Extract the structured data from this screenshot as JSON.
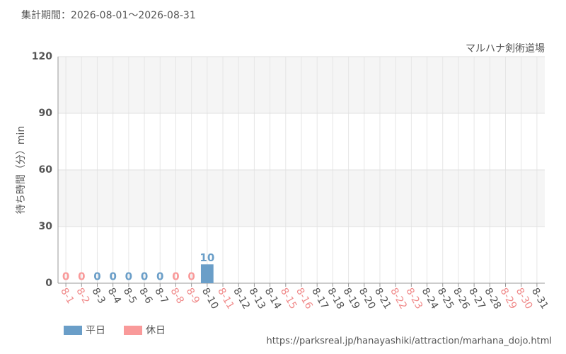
{
  "chart_data": {
    "type": "bar",
    "subtitle": "集計期間：2026-08-01～2026-08-31",
    "title": "マルハナ剣術道場",
    "y_label": "待ち時間（分）min",
    "source": "https://parksreal.jp/hanayashiki/attraction/marhana_dojo.html",
    "categories": [
      "8-1",
      "8-2",
      "8-3",
      "8-4",
      "8-5",
      "8-6",
      "8-7",
      "8-8",
      "8-9",
      "8-10",
      "8-11",
      "8-12",
      "8-13",
      "8-14",
      "8-15",
      "8-16",
      "8-17",
      "8-18",
      "8-19",
      "8-20",
      "8-21",
      "8-22",
      "8-23",
      "8-24",
      "8-25",
      "8-26",
      "8-27",
      "8-28",
      "8-29",
      "8-30",
      "8-31"
    ],
    "category_colors": [
      "#f08a8a",
      "#f08a8a",
      "#555555",
      "#555555",
      "#555555",
      "#555555",
      "#555555",
      "#f08a8a",
      "#f08a8a",
      "#555555",
      "#f08a8a",
      "#555555",
      "#555555",
      "#555555",
      "#f08a8a",
      "#f08a8a",
      "#555555",
      "#555555",
      "#555555",
      "#555555",
      "#555555",
      "#f08a8a",
      "#f08a8a",
      "#555555",
      "#555555",
      "#555555",
      "#555555",
      "#555555",
      "#f08a8a",
      "#f08a8a",
      "#555555"
    ],
    "series": [
      {
        "name": "平日",
        "color": "#6a9ec8",
        "values": [
          null,
          null,
          0,
          0,
          0,
          0,
          0,
          null,
          null,
          10,
          null,
          null,
          null,
          null,
          null,
          null,
          null,
          null,
          null,
          null,
          null,
          null,
          null,
          null,
          null,
          null,
          null,
          null,
          null,
          null,
          null
        ]
      },
      {
        "name": "休日",
        "color": "#f99a9a",
        "values": [
          0,
          0,
          null,
          null,
          null,
          null,
          null,
          0,
          0,
          null,
          null,
          null,
          null,
          null,
          null,
          null,
          null,
          null,
          null,
          null,
          null,
          null,
          null,
          null,
          null,
          null,
          null,
          null,
          null,
          null,
          null
        ]
      }
    ],
    "ylim": [
      0,
      120
    ],
    "yticks": [
      0,
      30,
      60,
      90,
      120
    ],
    "grid": true
  }
}
